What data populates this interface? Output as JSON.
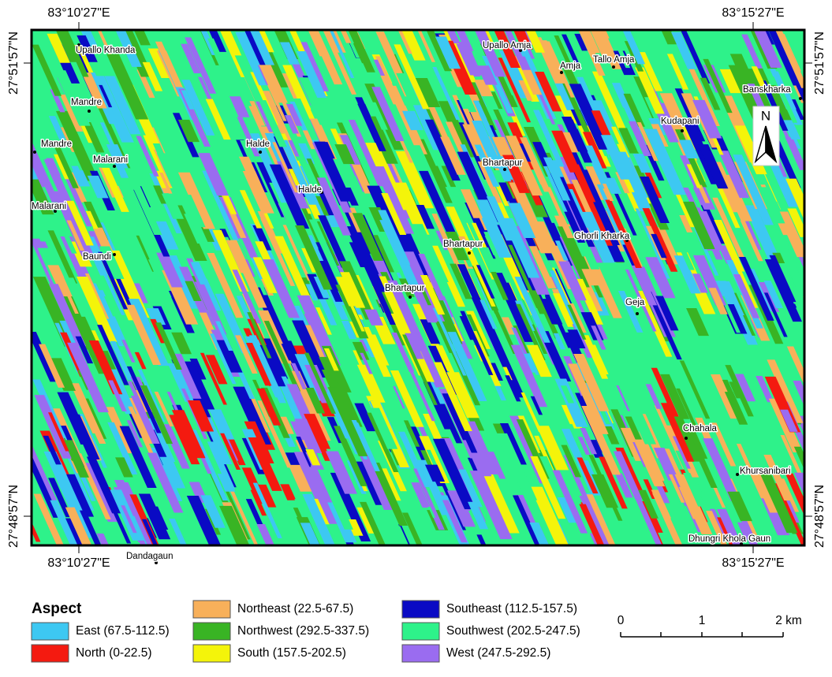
{
  "map": {
    "graticule": {
      "top": [
        "83°10'27\"E",
        "83°15'27\"E"
      ],
      "bottom": [
        "83°10'27\"E",
        "83°15'27\"E"
      ],
      "left": [
        "27°51'57\"N",
        "27°48'57\"N"
      ],
      "right": [
        "27°51'57\"N",
        "27°48'57\"N"
      ]
    },
    "places": [
      "Upallo Khanda",
      "Mandre",
      "Mandre",
      "Malarani",
      "Malarani",
      "Baundi",
      "Halde",
      "Halde",
      "Upallo Amja",
      "Amja",
      "Tallo Amja",
      "Banskharka",
      "Kudapani",
      "Bhartapur",
      "Ghorli Kharka",
      "Bhartapur",
      "Bhartapur",
      "Geja",
      "Chahala",
      "Khursanibari",
      "Dhungri Khola Gaun",
      "Dandagaun"
    ],
    "north_arrow": "N",
    "legend": {
      "title": "Aspect",
      "items": [
        {
          "label": "East (67.5-112.5)",
          "color": "#3dc8f2"
        },
        {
          "label": "North (0-22.5)",
          "color": "#f41a10"
        },
        {
          "label": "Northeast (22.5-67.5)",
          "color": "#f8b05a"
        },
        {
          "label": "Northwest (292.5-337.5)",
          "color": "#39b424"
        },
        {
          "label": "South (157.5-202.5)",
          "color": "#f4f40a"
        },
        {
          "label": "Southeast (112.5-157.5)",
          "color": "#0a0ac4"
        },
        {
          "label": "Southwest (202.5-247.5)",
          "color": "#2ef28a"
        },
        {
          "label": "West (247.5-292.5)",
          "color": "#9a6cf0"
        }
      ]
    },
    "scale_bar": {
      "labels": [
        "0",
        "1",
        "2 km"
      ]
    }
  }
}
